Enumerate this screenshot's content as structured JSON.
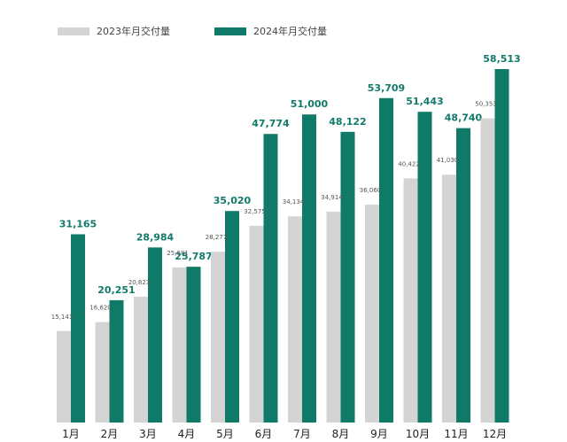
{
  "legend": {
    "series_2023": "2023年月交付量",
    "series_2024": "2024年月交付量"
  },
  "colors": {
    "series_2023": "#d4d4d4",
    "series_2024": "#0f7a68",
    "label_2024": "#127a6a",
    "label_2023": "#555555"
  },
  "chart_data": {
    "type": "bar",
    "categories": [
      "1月",
      "2月",
      "3月",
      "4月",
      "5月",
      "6月",
      "7月",
      "8月",
      "9月",
      "10月",
      "11月",
      "12月"
    ],
    "series": [
      {
        "name": "2023年月交付量",
        "values": [
          15141,
          16620,
          20823,
          25681,
          28277,
          32575,
          34134,
          34914,
          36060,
          40422,
          41030,
          50353
        ],
        "labels": [
          "15,141",
          "16,620",
          "20,823",
          "25,681",
          "28,277",
          "32,575",
          "34,134",
          "34,914",
          "36,060",
          "40,422",
          "41,030",
          "50,353"
        ]
      },
      {
        "name": "2024年月交付量",
        "values": [
          31165,
          20251,
          28984,
          25787,
          35020,
          47774,
          51000,
          48122,
          53709,
          51443,
          48740,
          58513
        ],
        "labels": [
          "31,165",
          "20,251",
          "28,984",
          "25,787",
          "35,020",
          "47,774",
          "51,000",
          "48,122",
          "53,709",
          "51,443",
          "48,740",
          "58,513"
        ]
      }
    ],
    "ylim": [
      0,
      58513
    ],
    "grid": false,
    "legend_position": "top-left"
  }
}
